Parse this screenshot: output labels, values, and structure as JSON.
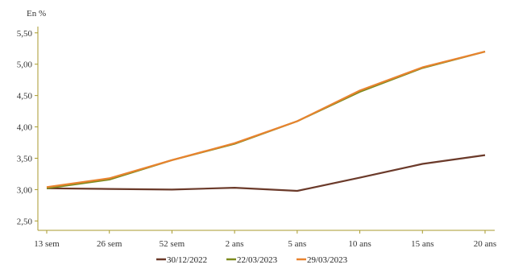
{
  "chart_data": {
    "type": "line",
    "unit_label": "En %",
    "categories": [
      "13 sem",
      "26 sem",
      "52 sem",
      "2 ans",
      "5 ans",
      "10 ans",
      "15 ans",
      "20 ans"
    ],
    "ylim": [
      2.35,
      5.6
    ],
    "yticks": [
      "2,50",
      "3,00",
      "3,50",
      "4,00",
      "4,50",
      "5,00",
      "5,50"
    ],
    "ytick_values": [
      2.5,
      3.0,
      3.5,
      4.0,
      4.5,
      5.0,
      5.5
    ],
    "grid": false,
    "legend_position": "bottom",
    "series": [
      {
        "name": "30/12/2022",
        "color": "#6b3a2a",
        "values": [
          3.02,
          3.01,
          3.0,
          3.03,
          2.98,
          3.19,
          3.41,
          3.55
        ]
      },
      {
        "name": "22/03/2023",
        "color": "#7d8a1e",
        "values": [
          3.02,
          3.16,
          3.47,
          3.73,
          4.09,
          4.56,
          4.94,
          5.2
        ]
      },
      {
        "name": "29/03/2023",
        "color": "#e8832f",
        "values": [
          3.04,
          3.18,
          3.47,
          3.74,
          4.09,
          4.58,
          4.95,
          5.2
        ]
      }
    ]
  }
}
